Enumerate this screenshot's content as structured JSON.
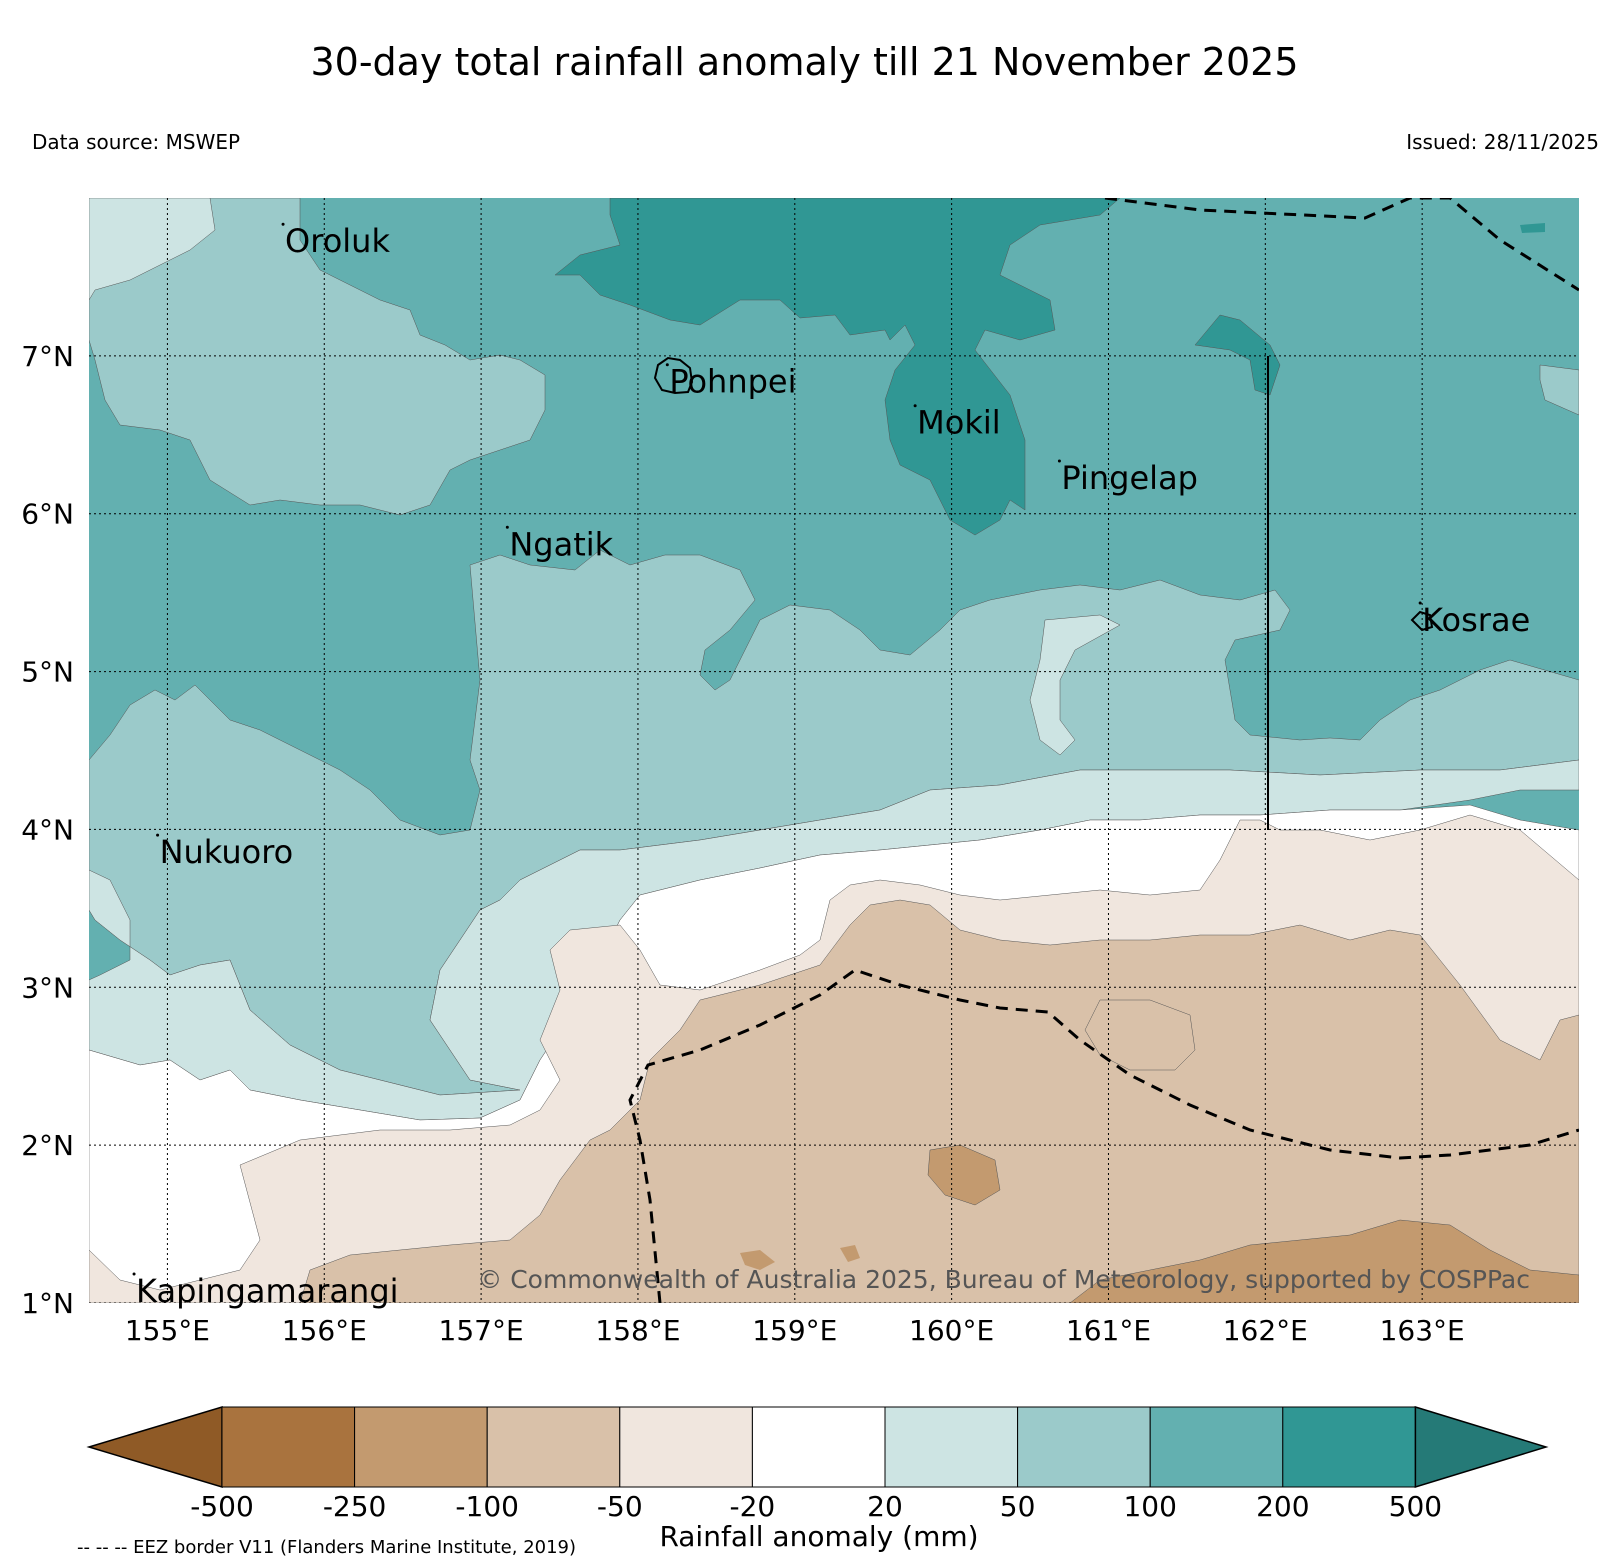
{
  "title": "30-day total rainfall anomaly till 21 November 2025",
  "data_source": "Data source: MSWEP",
  "issued": "Issued: 28/11/2025",
  "copyright": "© Commonwealth of Australia 2025, Bureau of Meteorology, supported by COSPPac",
  "colorbar": {
    "title": "Rainfall anomaly (mm)",
    "ticks": [
      "-500",
      "-250",
      "-100",
      "-50",
      "-20",
      "20",
      "50",
      "100",
      "200",
      "500"
    ],
    "colors": [
      "#8f5a26",
      "#a9733e",
      "#c39a6f",
      "#d9c1a9",
      "#f0e6de",
      "#ffffff",
      "#cde4e3",
      "#9bcaca",
      "#63b0b0",
      "#309794",
      "#257a77"
    ]
  },
  "eez_note": "-- -- -- EEZ border V11 (Flanders Marine Institute, 2019)",
  "map": {
    "lon_labels": [
      "155°E",
      "156°E",
      "157°E",
      "158°E",
      "159°E",
      "160°E",
      "161°E",
      "162°E",
      "163°E"
    ],
    "lat_labels": [
      "7°N",
      "6°N",
      "5°N",
      "4°N",
      "3°N",
      "2°N",
      "1°N"
    ],
    "places": [
      {
        "name": "Oroluk",
        "lon": 155.75,
        "lat": 7.72
      },
      {
        "name": "Pohnpei",
        "lon": 158.2,
        "lat": 6.83
      },
      {
        "name": "Mokil",
        "lon": 159.78,
        "lat": 6.57
      },
      {
        "name": "Pingelap",
        "lon": 160.7,
        "lat": 6.22
      },
      {
        "name": "Ngatik",
        "lon": 157.18,
        "lat": 5.8
      },
      {
        "name": "Kosrae",
        "lon": 163.0,
        "lat": 5.32
      },
      {
        "name": "Nukuoro",
        "lon": 154.95,
        "lat": 3.85
      },
      {
        "name": "Kapingamarangi",
        "lon": 154.8,
        "lat": 1.07
      }
    ]
  }
}
